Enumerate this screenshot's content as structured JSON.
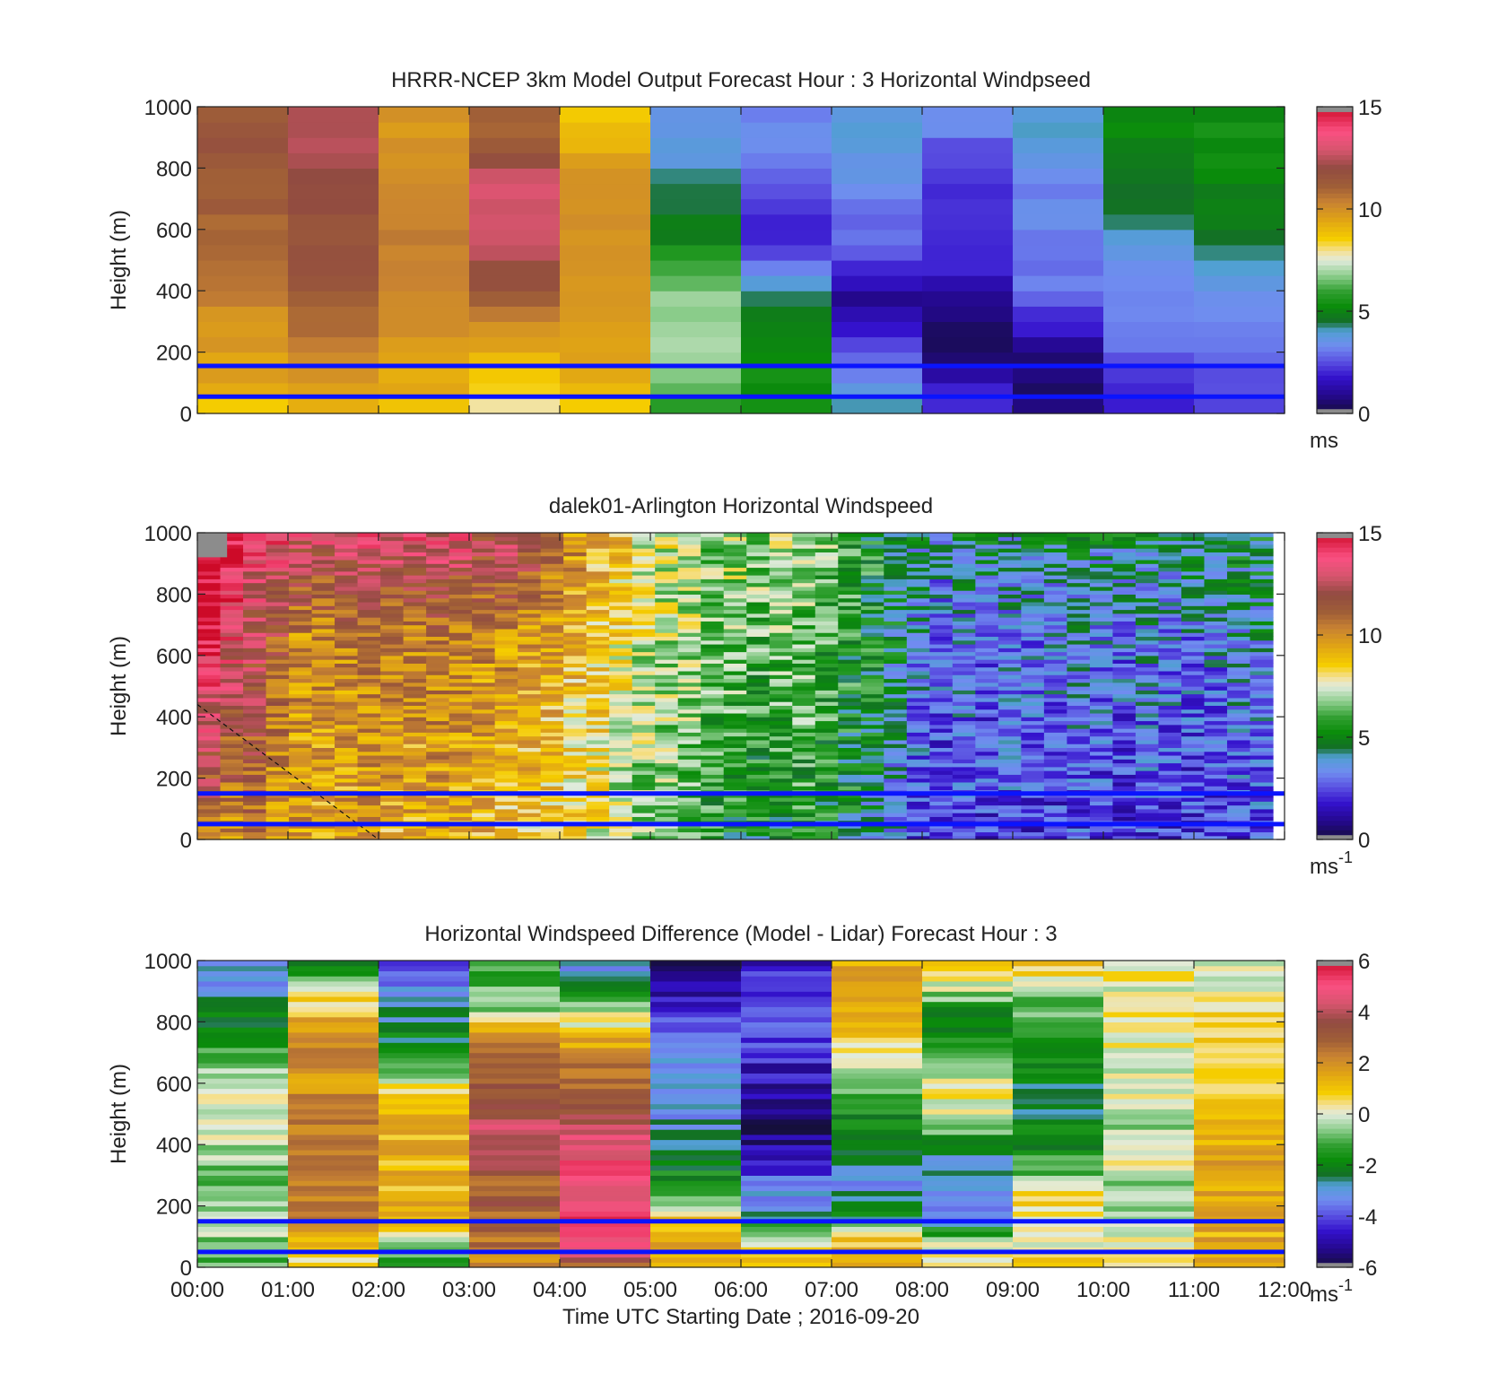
{
  "xticks": [
    "00:00",
    "01:00",
    "02:00",
    "03:00",
    "04:00",
    "05:00",
    "06:00",
    "07:00",
    "08:00",
    "09:00",
    "10:00",
    "11:00",
    "12:00"
  ],
  "xlabel": "Time UTC  Starting Date ; 2016-09-20",
  "ref_line_colour": "#0a14ff",
  "chart_data": [
    {
      "type": "heatmap",
      "title": "HRRR-NCEP 3km Model Output   Forecast Hour : 3 Horizontal Windpseed",
      "ylabel": "Height (m)",
      "ylim": [
        0,
        1000
      ],
      "yticks": [
        "0",
        "200",
        "400",
        "600",
        "800",
        "1000"
      ],
      "xlim": [
        0,
        12
      ],
      "colorbar": {
        "range": [
          0,
          15
        ],
        "ticks": [
          "0",
          "5",
          "10",
          "15"
        ],
        "unit": "ms",
        "unit_sup": ""
      },
      "reference_lines_m": [
        55,
        155
      ],
      "time_bins": 12,
      "height_bins": 20,
      "profiles": [
        [
          8.5,
          9.2,
          9.5,
          9.6,
          9.7,
          9.8,
          10,
          10.3,
          10.5,
          10.6,
          10.8,
          11,
          11,
          11.2,
          11.2,
          11.3,
          11.4,
          11.5,
          11.5,
          11.5
        ],
        [
          8.8,
          9.4,
          9.7,
          10,
          10.5,
          10.8,
          11,
          11.2,
          11.4,
          11.5,
          11.6,
          11.7,
          11.8,
          11.9,
          12,
          12.1,
          12.3,
          12.5,
          12.6,
          12.6
        ],
        [
          8.8,
          9.2,
          9.4,
          9.6,
          9.7,
          9.8,
          10,
          10.1,
          10.2,
          10.3,
          10.3,
          10.4,
          10.4,
          10.4,
          10.4,
          10.2,
          10,
          9.8,
          9.8,
          9.8
        ],
        [
          7.5,
          8.2,
          8.6,
          9,
          9.5,
          10,
          10.5,
          11,
          11.5,
          12,
          12.5,
          13,
          13,
          13,
          13,
          12.5,
          11.8,
          11,
          11,
          11
        ],
        [
          8.5,
          9,
          9.2,
          9.4,
          9.5,
          9.6,
          9.7,
          9.8,
          9.9,
          10,
          10,
          10,
          10,
          10,
          10.1,
          9.8,
          9.5,
          9.2,
          8.8,
          8.5
        ],
        [
          5.5,
          6,
          6.5,
          6.8,
          7,
          7,
          7,
          6.8,
          6.5,
          6,
          5.5,
          5,
          4.8,
          4.6,
          4.4,
          4,
          3.8,
          3.6,
          3.4,
          3.4
        ],
        [
          5.2,
          5.3,
          5.4,
          5.3,
          5.2,
          5,
          4.8,
          4.6,
          3.8,
          3,
          2.5,
          2,
          2,
          2.2,
          2.5,
          2.8,
          3,
          3.2,
          3.2,
          3.2
        ],
        [
          4.5,
          4,
          3.5,
          3,
          2.5,
          2,
          1.5,
          1,
          1.5,
          2,
          2.5,
          2.8,
          3,
          3.2,
          3.4,
          3.6,
          3.8,
          3.8,
          3.8,
          3.8
        ],
        [
          2.5,
          2,
          1.5,
          1,
          0.5,
          0.5,
          0.8,
          1,
          1.5,
          2,
          2.2,
          2.2,
          2.2,
          2.2,
          2.2,
          2.2,
          2.4,
          2.8,
          3.4,
          3.4
        ],
        [
          1,
          0.8,
          0.5,
          0.6,
          1,
          1.5,
          2.2,
          2.8,
          3,
          3.1,
          3.2,
          3.2,
          3.3,
          3.3,
          3.3,
          3.3,
          3.6,
          3.8,
          3.9,
          4
        ],
        [
          2,
          2.2,
          2.4,
          2.6,
          2.8,
          3,
          3.2,
          3.3,
          3.4,
          3.6,
          3.8,
          4,
          4.3,
          4.5,
          4.7,
          4.9,
          5,
          5,
          5.1,
          5.1
        ],
        [
          2.5,
          2.6,
          2.7,
          2.8,
          3,
          3.2,
          3.4,
          3.5,
          3.6,
          4,
          4.2,
          4.5,
          4.8,
          5,
          5.1,
          5.2,
          5.2,
          5.3,
          5.3,
          5.3
        ]
      ]
    },
    {
      "type": "heatmap",
      "title": "dalek01-Arlington  Horizontal Windspeed",
      "ylabel": "Height (m)",
      "ylim": [
        0,
        1000
      ],
      "yticks": [
        "0",
        "200",
        "400",
        "600",
        "800",
        "1000"
      ],
      "xlim": [
        0,
        12
      ],
      "colorbar": {
        "range": [
          0,
          15
        ],
        "ticks": [
          "0",
          "5",
          "10",
          "15"
        ],
        "unit": "ms",
        "unit_sup": "-1"
      },
      "reference_lines_m": [
        50,
        150
      ],
      "diagonal_line": {
        "x0": 0,
        "y0": 440,
        "x1": 2,
        "y1": 0
      },
      "time_bins": 47,
      "height_bins": 80,
      "profiles": [
        [
          10.5,
          12.6,
          14.6,
          14.8
        ],
        [
          10,
          11.5,
          13.5,
          14.8
        ],
        [
          10.5,
          11.5,
          12.3,
          13.5
        ],
        [
          9.5,
          10.5,
          11.5,
          13.5
        ],
        [
          9.5,
          9.8,
          10.2,
          13
        ],
        [
          9.2,
          9.6,
          10.2,
          13
        ],
        [
          9.4,
          9.8,
          10.4,
          13.3
        ],
        [
          9.5,
          10,
          10.6,
          13.3
        ],
        [
          9.2,
          9.8,
          10.4,
          13.2
        ],
        [
          9.2,
          9.6,
          10.2,
          13.2
        ],
        [
          9.5,
          10,
          10.6,
          13.3
        ],
        [
          9.2,
          9.6,
          10.4,
          13.2
        ],
        [
          9,
          9.5,
          10.2,
          12.2
        ],
        [
          8.8,
          9.2,
          10,
          13
        ],
        [
          8.5,
          9,
          9.8,
          12.4
        ],
        [
          8.5,
          8.8,
          9.4,
          11.2
        ],
        [
          8,
          8.5,
          9,
          10
        ],
        [
          7.8,
          8.2,
          8.6,
          9.2
        ],
        [
          7.2,
          7.6,
          8.2,
          8.8
        ],
        [
          6.8,
          7,
          7.4,
          7.8
        ],
        [
          6.5,
          6.8,
          7.2,
          7.6
        ],
        [
          6.2,
          6.6,
          7,
          7.4
        ],
        [
          5.5,
          6,
          6.4,
          6.8
        ],
        [
          5.2,
          6,
          6.8,
          7.2
        ],
        [
          5,
          5.5,
          6.2,
          7
        ],
        [
          5,
          5.8,
          6.5,
          7
        ],
        [
          5.5,
          6,
          6.5,
          6.8
        ],
        [
          5.2,
          5.6,
          6,
          6.5
        ],
        [
          4.8,
          5.2,
          5.6,
          6
        ],
        [
          4.2,
          4.8,
          5.2,
          5.5
        ],
        [
          3.5,
          4,
          4.6,
          5
        ],
        [
          2.6,
          3,
          3.6,
          4.2
        ],
        [
          2.4,
          2.6,
          3,
          3.8
        ],
        [
          2.8,
          3,
          3.2,
          4.6
        ],
        [
          2.2,
          2.6,
          3,
          4.8
        ],
        [
          2.6,
          3,
          3.4,
          4.2
        ],
        [
          2,
          2.6,
          3.2,
          4.6
        ],
        [
          2.2,
          2.8,
          3.4,
          4.4
        ],
        [
          2.4,
          3,
          3.6,
          4.8
        ],
        [
          2.2,
          2.8,
          3.4,
          4.4
        ],
        [
          2,
          2.6,
          3.2,
          4.6
        ],
        [
          2.4,
          3,
          3.6,
          4.6
        ],
        [
          2.2,
          2.8,
          3.4,
          4.4
        ],
        [
          2,
          2.6,
          3.2,
          4.4
        ],
        [
          2.2,
          2.8,
          3.4,
          4.6
        ],
        [
          2.4,
          3,
          3.8,
          4.8
        ],
        [
          2.6,
          3.2,
          4,
          4.8
        ]
      ]
    },
    {
      "type": "heatmap",
      "title": "Horizontal Windspeed Difference (Model - Lidar) Forecast Hour : 3",
      "ylabel": "Height (m)",
      "ylim": [
        0,
        1000
      ],
      "yticks": [
        "0",
        "200",
        "400",
        "600",
        "800",
        "1000"
      ],
      "xlim": [
        0,
        12
      ],
      "colorbar": {
        "range": [
          -6,
          6
        ],
        "ticks": [
          "-6",
          "-4",
          "-2",
          "0",
          "2",
          "4",
          "6"
        ],
        "unit": "ms",
        "unit_sup": "-1"
      },
      "reference_lines_m": [
        50,
        150
      ],
      "time_bins": 12,
      "height_bins": 60,
      "profiles": [
        [
          -1,
          -0.8,
          -0.5,
          -0.3,
          -0.6,
          -1,
          -0.8,
          -0.5,
          -0.2,
          0,
          0.2,
          0,
          -0.3,
          -0.8,
          -1.5,
          -2,
          -2.5,
          -2.8,
          -3,
          -3.2
        ],
        [
          0.5,
          0.8,
          1.5,
          2.5,
          2.6,
          2.6,
          2.6,
          2.5,
          2.4,
          2.3,
          2.2,
          2.1,
          2,
          2,
          1.8,
          1.5,
          1,
          0.2,
          -1,
          -2
        ],
        [
          -2,
          -1,
          0.5,
          1.2,
          1.2,
          1.2,
          1.2,
          1.2,
          1.3,
          1.5,
          1.4,
          0.5,
          -0.5,
          -1.5,
          -2,
          -2.5,
          -2.8,
          -3,
          -3.5,
          -4
        ],
        [
          2,
          2.5,
          2.8,
          3,
          3,
          3,
          3.3,
          3.8,
          4.2,
          4,
          3.5,
          3,
          2.8,
          2.5,
          2.5,
          1,
          -0.5,
          -1,
          -1,
          -1
        ],
        [
          2.8,
          4.5,
          4.8,
          5,
          5,
          5,
          4.8,
          4.6,
          4.3,
          4,
          3.5,
          3,
          2.5,
          2,
          1.5,
          0.5,
          -0.5,
          -2,
          -3,
          -3
        ],
        [
          1,
          1.5,
          1.2,
          1,
          -1,
          -1.5,
          -2,
          -2.5,
          -2.8,
          -3,
          -3,
          -3,
          -3,
          -3,
          -3.5,
          -4,
          -4.5,
          -5.2,
          -5.5,
          -5.8
        ],
        [
          1,
          0.5,
          -0.5,
          -2.5,
          -3,
          -3,
          -4.5,
          -5,
          -5.2,
          -5.5,
          -5.2,
          -5,
          -4.8,
          -4.5,
          -4.2,
          -4,
          -4,
          -4.2,
          -4.3,
          -4.5
        ],
        [
          1.5,
          1.2,
          0.5,
          -2,
          -2.5,
          -3,
          -3,
          -2.5,
          -2.2,
          -2,
          -1.5,
          -1,
          -0.5,
          0,
          0.5,
          1,
          1.5,
          1.6,
          1.6,
          1.6
        ],
        [
          0.5,
          0,
          -1,
          -3,
          -3,
          -3,
          -2.8,
          -2.5,
          -1.5,
          -0.5,
          0.2,
          0.4,
          -0.5,
          -1,
          -1.5,
          -2,
          -1.5,
          -0.5,
          0.5,
          1
        ],
        [
          1,
          0.2,
          0.2,
          0.2,
          0.8,
          0.2,
          -1,
          -1.5,
          -2,
          -2.2,
          -2.2,
          -2.2,
          -2,
          -1.8,
          -1.5,
          -1.2,
          -1,
          -0.5,
          0.5,
          1.2
        ],
        [
          0.2,
          0,
          -0.2,
          -0.6,
          -0.8,
          -0.5,
          -0.2,
          0,
          -0.4,
          -0.8,
          -0.4,
          0,
          0.2,
          0,
          0.2,
          0.5,
          0.4,
          0,
          0.2,
          0.3
        ],
        [
          1.4,
          1.4,
          1.4,
          1.6,
          1.6,
          1.6,
          1.5,
          1.5,
          1.4,
          1.4,
          1.2,
          1,
          0.8,
          0.8,
          0.6,
          0.5,
          0.4,
          0.2,
          0,
          0
        ]
      ]
    }
  ]
}
